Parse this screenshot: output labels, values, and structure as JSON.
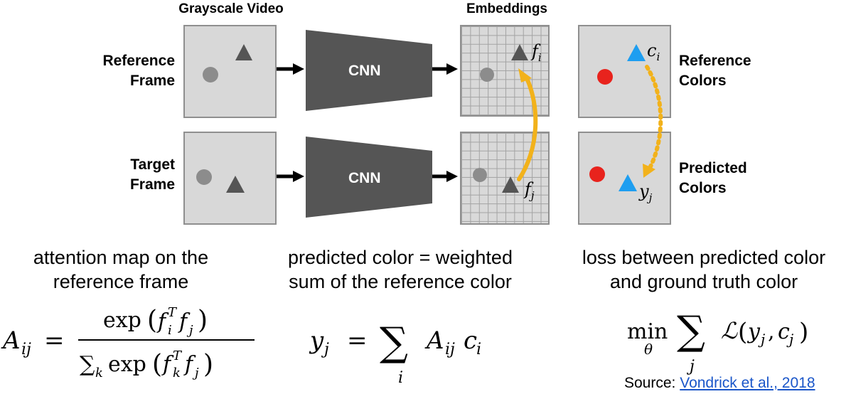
{
  "headers": {
    "grayscale_video": "Grayscale Video",
    "embeddings": "Embeddings"
  },
  "row_labels": {
    "reference_frame": [
      "Reference",
      "Frame"
    ],
    "target_frame": [
      "Target",
      "Frame"
    ],
    "reference_colors": [
      "Reference",
      "Colors"
    ],
    "predicted_colors": [
      "Predicted",
      "Colors"
    ]
  },
  "cnn_label": "CNN",
  "symbols": {
    "f_i": {
      "base": "f",
      "sub": "i"
    },
    "f_j": {
      "base": "f",
      "sub": "j"
    },
    "c_i": {
      "base": "c",
      "sub": "i"
    },
    "y_j": {
      "base": "y",
      "sub": "j"
    }
  },
  "captions": {
    "attention": [
      "attention map on the",
      "reference frame"
    ],
    "prediction": [
      "predicted color = weighted",
      "sum of the reference color"
    ],
    "loss": [
      "loss between predicted color",
      "and ground truth color"
    ]
  },
  "equations": {
    "attention": "A_ij = exp(f_i^T f_j) / Σ_k exp(f_k^T f_j)",
    "prediction": "y_j = Σ_i A_ij c_i",
    "loss": "min_θ Σ_j L(y_j, c_j)"
  },
  "source": {
    "prefix": "Source: ",
    "link_text": "Vondrick et al., 2018"
  },
  "colors": {
    "frame_bg": "#d8d8d8",
    "cnn": "#555555",
    "gray_circle": "#8c8c8c",
    "gray_triangle": "#555555",
    "red_circle": "#e8231d",
    "blue_triangle": "#1e9ef0",
    "arrow_yellow": "#f2b21b"
  }
}
